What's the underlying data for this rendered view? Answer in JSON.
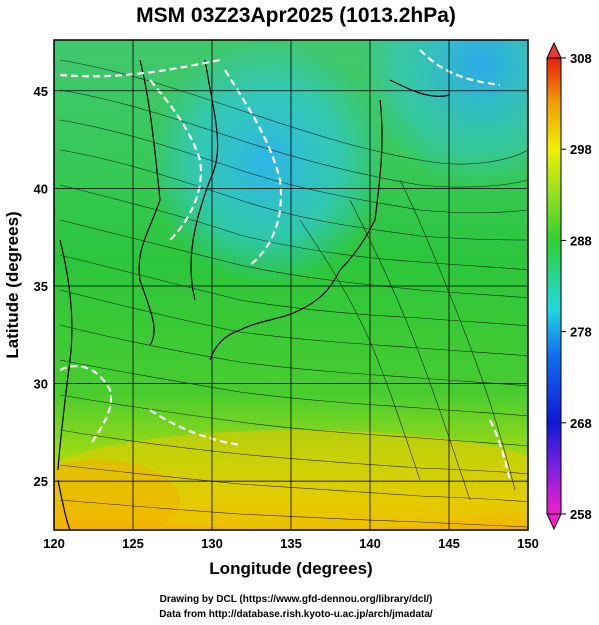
{
  "title": "MSM 03Z23Apr2025 (1013.2hPa)",
  "x_axis": {
    "label": "Longitude (degrees)",
    "min": 120,
    "max": 150,
    "ticks": [
      120,
      125,
      130,
      135,
      140,
      145,
      150
    ]
  },
  "y_axis": {
    "label": "Latitude  (degrees)",
    "min": 22.5,
    "max": 47.6,
    "ticks": [
      25,
      30,
      35,
      40,
      45
    ]
  },
  "colorbar": {
    "min": 258,
    "max": 308,
    "ticks": [
      258,
      268,
      278,
      288,
      298,
      308
    ]
  },
  "credits": [
    "Drawing by DCL (https://www.gfd-dennou.org/library/dcl/)",
    "Data from http://database.rish.kyoto-u.ac.jp/arch/jmadata/"
  ],
  "colors": {
    "warm": "#f5b400",
    "mild": "#3ccc3c",
    "cool": "#31c6e6",
    "contour": "#ffffff",
    "coast": "#000000"
  }
}
